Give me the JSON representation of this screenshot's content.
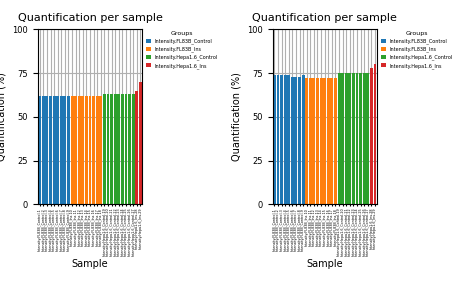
{
  "chart_data": [
    {
      "type": "bar",
      "title": "Quantification per sample",
      "xlabel": "Sample",
      "ylabel": "Quantification (%)",
      "legend_title": "Groups",
      "legend": "upper left",
      "grid": true,
      "ylim": [
        0,
        100
      ],
      "yticks": [
        0,
        25,
        50,
        75,
        100
      ],
      "categories": [
        "Intensity.FL83B_Control.1",
        "Intensity.FL83B_Control.2",
        "Intensity.FL83B_Control.3",
        "Intensity.FL83B_Control.4",
        "Intensity.FL83B_Control.5",
        "Intensity.FL83B_Control.6",
        "Intensity.FL83B_Control.7",
        "Intensity.FL83B_Control.8",
        "Intensity.FL83B_Control.9",
        "Intensity.FL83B_Ins.10",
        "Intensity.FL83B_Ins.11",
        "Intensity.FL83B_Ins.12",
        "Intensity.FL83B_Ins.13",
        "Intensity.FL83B_Ins.14",
        "Intensity.FL83B_Ins.15",
        "Intensity.FL83B_Ins.16",
        "Intensity.FL83B_Ins.17",
        "Intensity.FL83B_Ins.18",
        "Intensity.Hepa1.6_Control.19",
        "Intensity.Hepa1.6_Control.20",
        "Intensity.Hepa1.6_Control.21",
        "Intensity.Hepa1.6_Control.22",
        "Intensity.Hepa1.6_Control.23",
        "Intensity.Hepa1.6_Control.24",
        "Intensity.Hepa1.6_Control.25",
        "Intensity.Hepa1.6_Control.26",
        "Intensity.Hepa1.6_Control.27",
        "Intensity.Hepa1.6_Ins.28",
        "Intensity.Hepa1.6_Ins.29"
      ],
      "series": [
        {
          "name": "Intensity.FL83B_Control",
          "values": [
            62,
            62,
            62,
            62,
            62,
            62,
            62,
            62,
            62,
            null,
            null,
            null,
            null,
            null,
            null,
            null,
            null,
            null,
            null,
            null,
            null,
            null,
            null,
            null,
            null,
            null,
            null,
            null,
            null
          ]
        },
        {
          "name": "Intensity.FL83B_Ins",
          "values": [
            null,
            null,
            null,
            null,
            null,
            null,
            null,
            null,
            null,
            62,
            62,
            62,
            62,
            62,
            62,
            62,
            62,
            62,
            null,
            null,
            null,
            null,
            null,
            null,
            null,
            null,
            null,
            null,
            null
          ]
        },
        {
          "name": "Intensity.Hepa1.6_Control",
          "values": [
            null,
            null,
            null,
            null,
            null,
            null,
            null,
            null,
            null,
            null,
            null,
            null,
            null,
            null,
            null,
            null,
            null,
            null,
            63,
            63,
            63,
            63,
            63,
            63,
            63,
            63,
            63,
            null,
            null
          ]
        },
        {
          "name": "Intensity.Hepa1.6_Ins",
          "values": [
            null,
            null,
            null,
            null,
            null,
            null,
            null,
            null,
            null,
            null,
            null,
            null,
            null,
            null,
            null,
            null,
            null,
            null,
            null,
            null,
            null,
            null,
            null,
            null,
            null,
            null,
            null,
            65,
            70
          ]
        }
      ]
    },
    {
      "type": "bar",
      "title": "Quantification per sample",
      "xlabel": "Sample",
      "ylabel": "Quantification (%)",
      "legend_title": "Groups",
      "legend": "upper left",
      "grid": true,
      "ylim": [
        0,
        100
      ],
      "yticks": [
        0,
        25,
        50,
        75,
        100
      ],
      "categories": [
        "Intensity.FL83B_Control.1",
        "Intensity.FL83B_Control.2",
        "Intensity.FL83B_Control.3",
        "Intensity.FL83B_Control.4",
        "Intensity.FL83B_Control.5",
        "Intensity.FL83B_Control.6",
        "Intensity.FL83B_Control.7",
        "Intensity.FL83B_Control.8",
        "Intensity.FL83B_Control.9",
        "Intensity.FL83B_Ins.10",
        "Intensity.FL83B_Ins.11",
        "Intensity.FL83B_Ins.12",
        "Intensity.FL83B_Ins.13",
        "Intensity.FL83B_Ins.14",
        "Intensity.FL83B_Ins.15",
        "Intensity.FL83B_Ins.16",
        "Intensity.FL83B_Ins.17",
        "Intensity.FL83B_Ins.18",
        "Intensity.Hepa1.6_Control.19",
        "Intensity.Hepa1.6_Control.20",
        "Intensity.Hepa1.6_Control.21",
        "Intensity.Hepa1.6_Control.22",
        "Intensity.Hepa1.6_Control.23",
        "Intensity.Hepa1.6_Control.24",
        "Intensity.Hepa1.6_Control.25",
        "Intensity.Hepa1.6_Control.26",
        "Intensity.Hepa1.6_Control.27",
        "Intensity.Hepa1.6_Ins.28",
        "Intensity.Hepa1.6_Ins.29"
      ],
      "series": [
        {
          "name": "Intensity.FL83B_Control",
          "values": [
            74,
            74,
            74,
            74,
            74,
            73,
            73,
            73,
            74,
            null,
            null,
            null,
            null,
            null,
            null,
            null,
            null,
            null,
            null,
            null,
            null,
            null,
            null,
            null,
            null,
            null,
            null,
            null,
            null
          ]
        },
        {
          "name": "Intensity.FL83B_Ins",
          "values": [
            null,
            null,
            null,
            null,
            null,
            null,
            null,
            null,
            null,
            72,
            72,
            72,
            72,
            72,
            72,
            72,
            72,
            72,
            null,
            null,
            null,
            null,
            null,
            null,
            null,
            null,
            null,
            null,
            null
          ]
        },
        {
          "name": "Intensity.Hepa1.6_Control",
          "values": [
            null,
            null,
            null,
            null,
            null,
            null,
            null,
            null,
            null,
            null,
            null,
            null,
            null,
            null,
            null,
            null,
            null,
            null,
            75,
            75,
            75,
            75,
            75,
            75,
            75,
            75,
            75,
            null,
            null
          ]
        },
        {
          "name": "Intensity.Hepa1.6_Ins",
          "values": [
            null,
            null,
            null,
            null,
            null,
            null,
            null,
            null,
            null,
            null,
            null,
            null,
            null,
            null,
            null,
            null,
            null,
            null,
            null,
            null,
            null,
            null,
            null,
            null,
            null,
            null,
            null,
            78,
            80
          ]
        }
      ]
    }
  ]
}
